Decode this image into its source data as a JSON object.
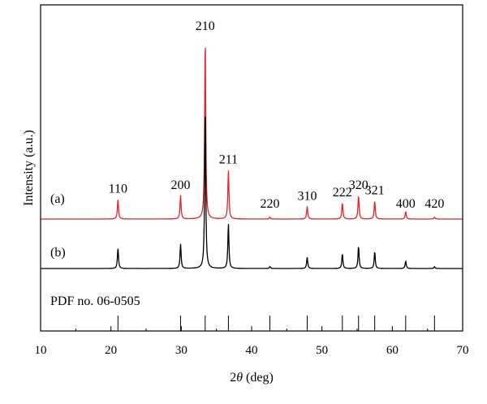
{
  "chart_data": {
    "type": "line",
    "xlabel_prefix": "2",
    "xlabel_theta": "θ",
    "xlabel_suffix": " (deg)",
    "ylabel": "Intensity (a.u.)",
    "xlim": [
      10,
      70
    ],
    "x_ticks": [
      "10",
      "20",
      "30",
      "40",
      "50",
      "60",
      "70"
    ],
    "series": [
      {
        "name": "(a)",
        "color": "#e8212a",
        "peaks": [
          {
            "x": 21.0,
            "h": 0.11,
            "label": "110"
          },
          {
            "x": 29.9,
            "h": 0.13,
            "label": "200"
          },
          {
            "x": 33.4,
            "h": 1.0,
            "label": "210"
          },
          {
            "x": 36.7,
            "h": 0.27,
            "label": "211"
          },
          {
            "x": 42.6,
            "h": 0.01,
            "label": "220"
          },
          {
            "x": 47.9,
            "h": 0.07,
            "label": "310"
          },
          {
            "x": 52.9,
            "h": 0.09,
            "label": "222"
          },
          {
            "x": 55.2,
            "h": 0.13,
            "label": "320"
          },
          {
            "x": 57.5,
            "h": 0.1,
            "label": "321"
          },
          {
            "x": 61.9,
            "h": 0.04,
            "label": "400"
          },
          {
            "x": 66.0,
            "h": 0.01,
            "label": "420"
          }
        ]
      },
      {
        "name": "(b)",
        "color": "#000000",
        "peaks": [
          {
            "x": 21.0,
            "h": 0.11
          },
          {
            "x": 29.9,
            "h": 0.13
          },
          {
            "x": 33.4,
            "h": 0.86
          },
          {
            "x": 36.7,
            "h": 0.24
          },
          {
            "x": 42.6,
            "h": 0.01
          },
          {
            "x": 47.9,
            "h": 0.06
          },
          {
            "x": 52.9,
            "h": 0.08
          },
          {
            "x": 55.2,
            "h": 0.12
          },
          {
            "x": 57.5,
            "h": 0.09
          },
          {
            "x": 61.9,
            "h": 0.04
          },
          {
            "x": 66.0,
            "h": 0.01
          }
        ]
      }
    ],
    "reference": {
      "label": "PDF no. 06-0505",
      "peaks": [
        21.0,
        29.9,
        33.4,
        36.7,
        42.6,
        47.9,
        52.9,
        55.2,
        57.5,
        61.9,
        66.0
      ]
    },
    "grid": false,
    "legend": "none"
  }
}
